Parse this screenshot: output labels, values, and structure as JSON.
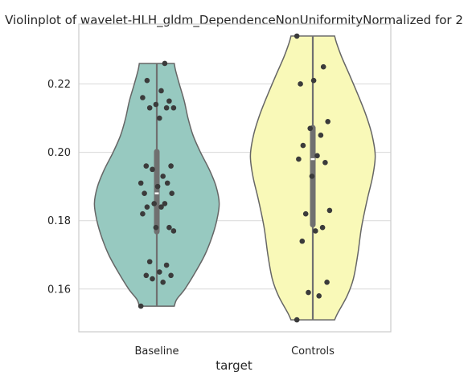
{
  "chart_data": {
    "type": "violin",
    "title": "Violinplot of wavelet-HLH_gldm_DependenceNonUniformityNormalized for 2",
    "xlabel": "target",
    "ylabel": "",
    "categories": [
      "Baseline",
      "Controls"
    ],
    "ylim": [
      0.1475,
      0.2375
    ],
    "yticks": [
      0.16,
      0.18,
      0.2,
      0.22
    ],
    "ytick_labels": [
      "0.16",
      "0.18",
      "0.20",
      "0.22"
    ],
    "grid": true,
    "series": [
      {
        "category": "Baseline",
        "fill_color": "#97c9c0",
        "min": 0.155,
        "max": 0.226,
        "median": 0.188,
        "q1": 0.176,
        "q3": 0.201,
        "density_profile": [
          [
            0.155,
            0.28
          ],
          [
            0.157,
            0.32
          ],
          [
            0.16,
            0.45
          ],
          [
            0.165,
            0.62
          ],
          [
            0.17,
            0.77
          ],
          [
            0.175,
            0.88
          ],
          [
            0.18,
            0.96
          ],
          [
            0.185,
            1.0
          ],
          [
            0.19,
            0.95
          ],
          [
            0.195,
            0.84
          ],
          [
            0.2,
            0.7
          ],
          [
            0.205,
            0.58
          ],
          [
            0.21,
            0.5
          ],
          [
            0.215,
            0.44
          ],
          [
            0.22,
            0.36
          ],
          [
            0.224,
            0.3
          ],
          [
            0.226,
            0.28
          ]
        ],
        "points": [
          0.155,
          0.162,
          0.163,
          0.164,
          0.164,
          0.165,
          0.167,
          0.168,
          0.177,
          0.178,
          0.178,
          0.182,
          0.184,
          0.184,
          0.185,
          0.185,
          0.188,
          0.188,
          0.19,
          0.191,
          0.191,
          0.193,
          0.195,
          0.196,
          0.196,
          0.21,
          0.213,
          0.213,
          0.213,
          0.214,
          0.215,
          0.216,
          0.218,
          0.221,
          0.226
        ]
      },
      {
        "category": "Controls",
        "fill_color": "#f9f9b8",
        "min": 0.151,
        "max": 0.234,
        "median": 0.198,
        "q1": 0.178,
        "q3": 0.208,
        "density_profile": [
          [
            0.151,
            0.35
          ],
          [
            0.153,
            0.4
          ],
          [
            0.158,
            0.55
          ],
          [
            0.163,
            0.65
          ],
          [
            0.17,
            0.72
          ],
          [
            0.178,
            0.78
          ],
          [
            0.186,
            0.87
          ],
          [
            0.193,
            0.96
          ],
          [
            0.199,
            1.0
          ],
          [
            0.205,
            0.95
          ],
          [
            0.211,
            0.85
          ],
          [
            0.217,
            0.72
          ],
          [
            0.223,
            0.58
          ],
          [
            0.228,
            0.46
          ],
          [
            0.232,
            0.38
          ],
          [
            0.234,
            0.35
          ]
        ],
        "points": [
          0.151,
          0.158,
          0.159,
          0.162,
          0.174,
          0.177,
          0.178,
          0.182,
          0.183,
          0.193,
          0.197,
          0.198,
          0.199,
          0.202,
          0.205,
          0.207,
          0.209,
          0.22,
          0.221,
          0.225,
          0.234
        ]
      }
    ]
  }
}
